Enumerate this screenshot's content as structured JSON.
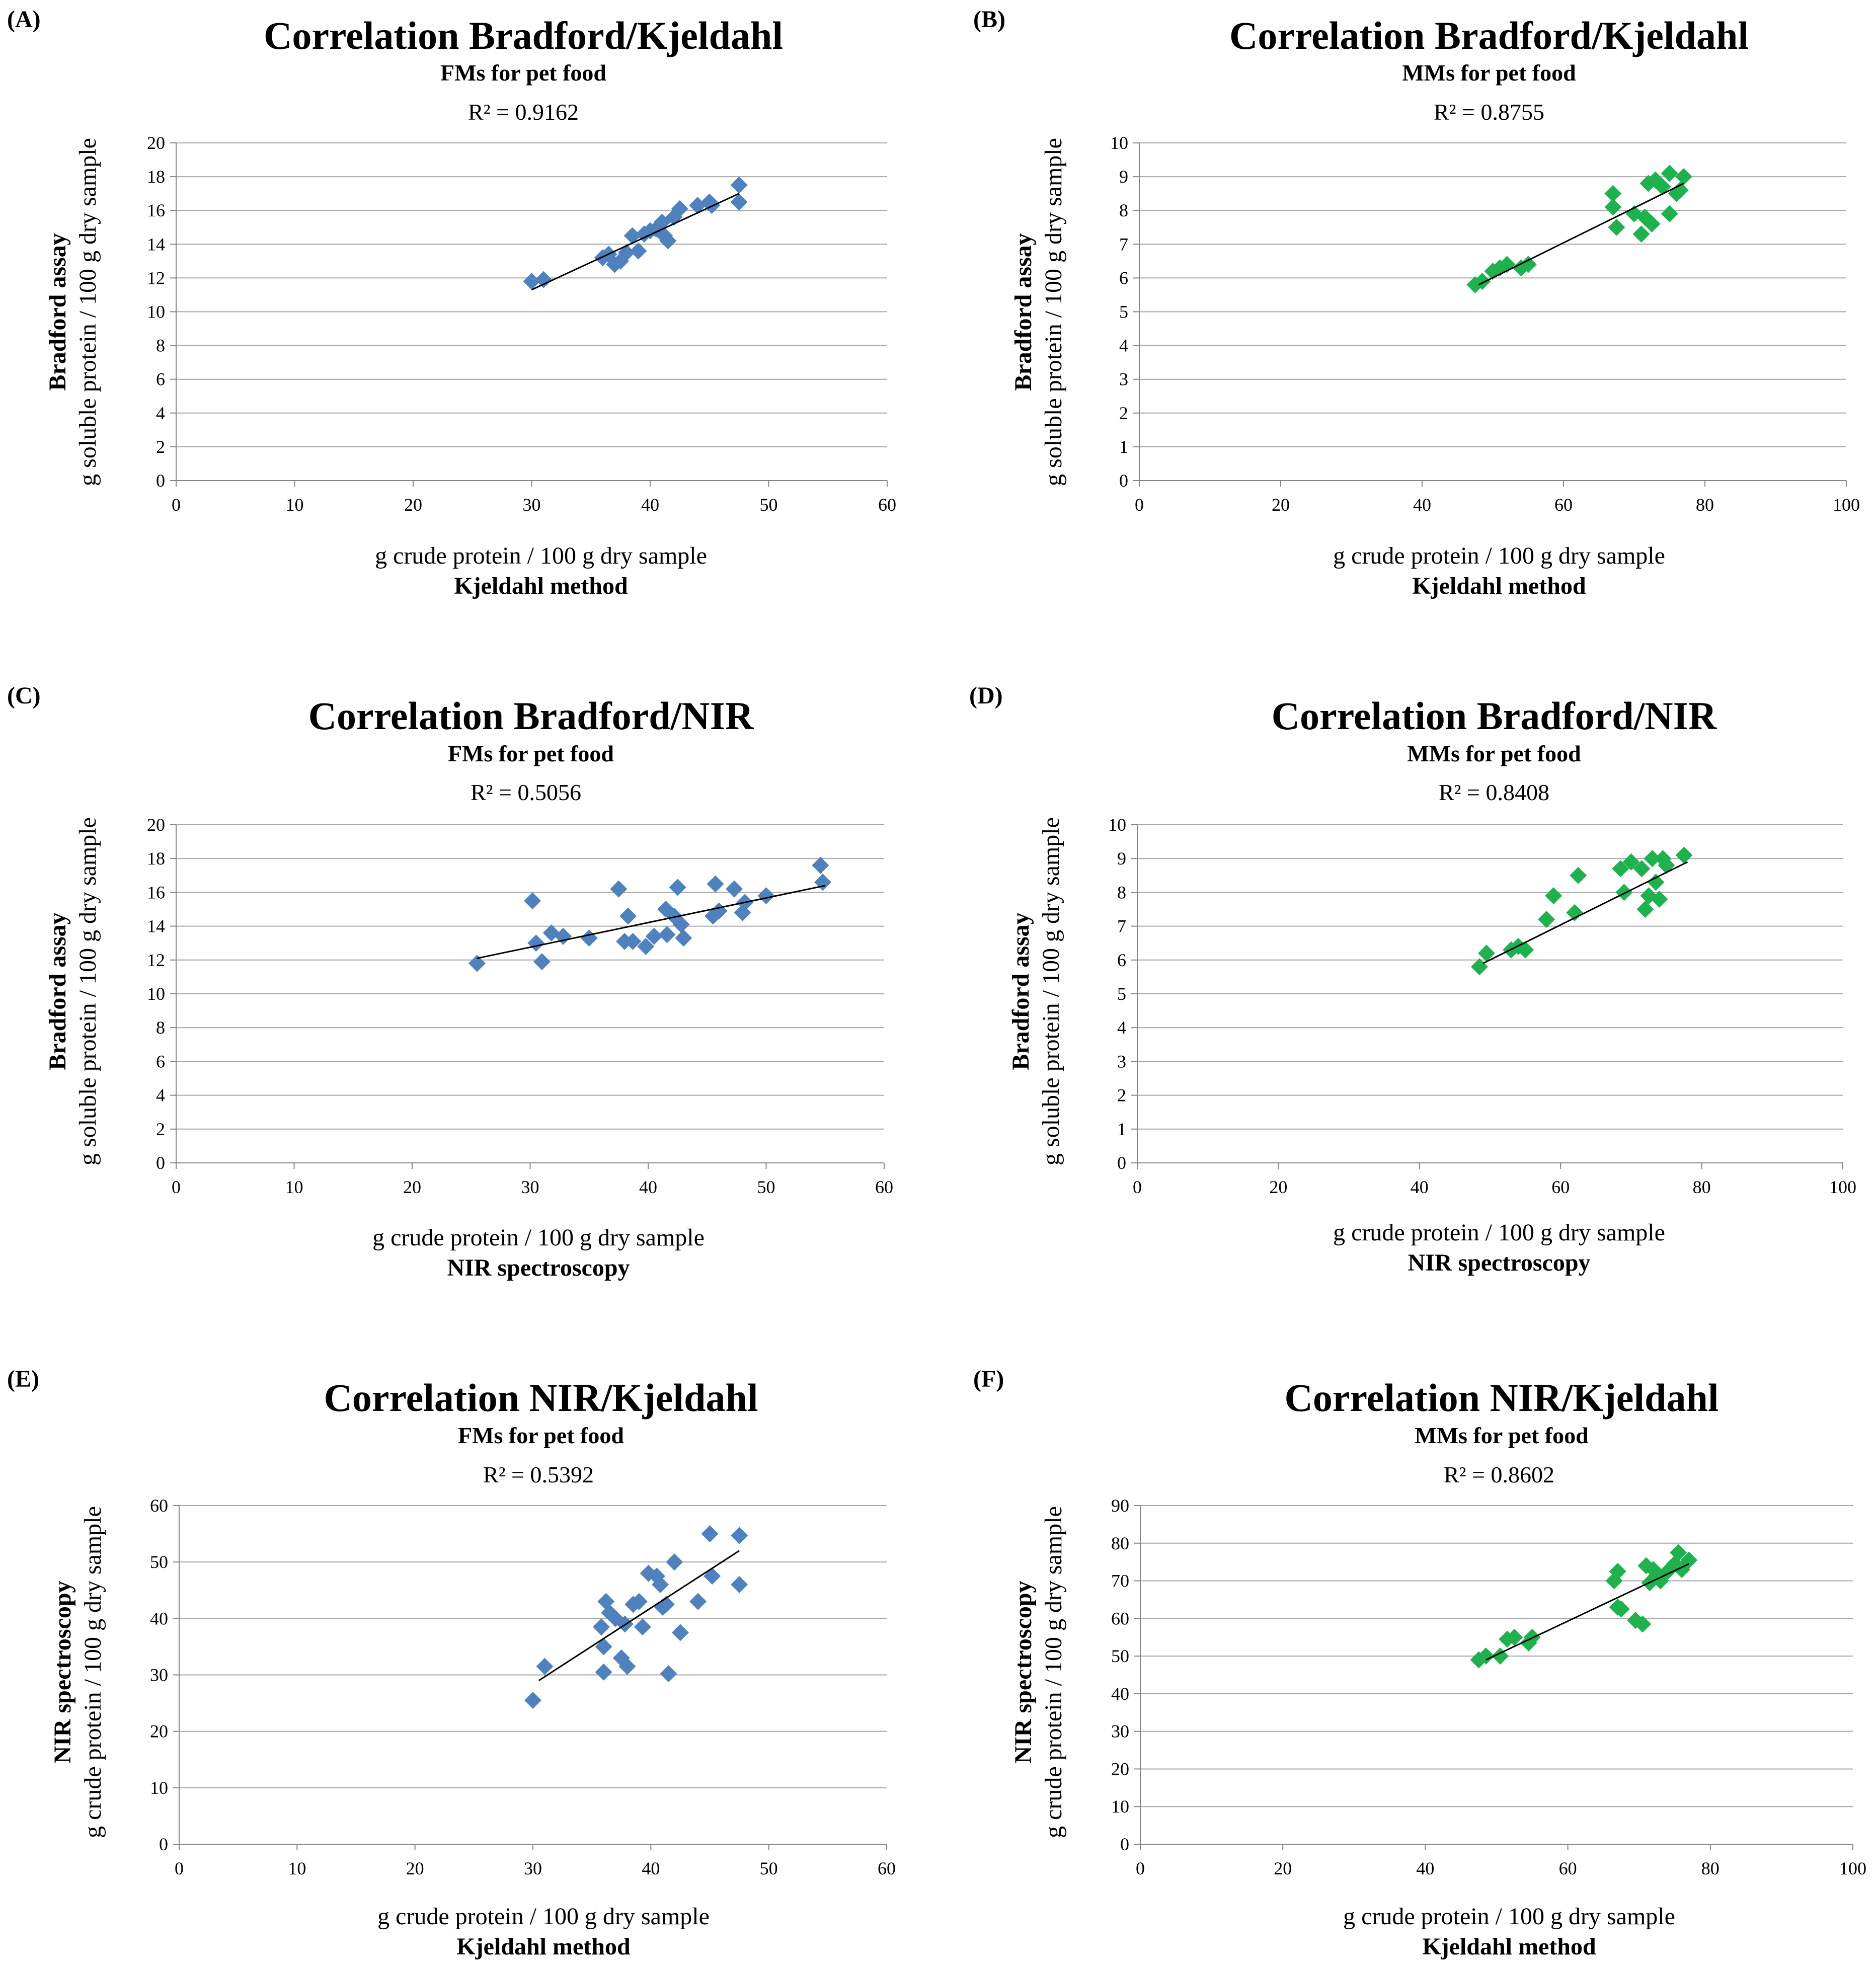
{
  "figure": {
    "colors": {
      "blue": "#4f81bd",
      "green": "#1eb14e",
      "grid": "#a6a6a6",
      "axis": "#868686",
      "trend": "#000000"
    }
  },
  "chart_data": [
    {
      "panel_letter": "(A)",
      "type": "scatter",
      "title": "Correlation Bradford/Kjeldahl",
      "subtitle": "FMs for pet food",
      "r2": "R² = 0.9162",
      "xlabel": "g crude protein / 100 g dry sample",
      "xlabel_bold": "Kjeldahl method",
      "ylabel": "g soluble protein / 100 g dry sample",
      "ylabel_bold": "Bradford assay",
      "xlim": [
        0,
        60
      ],
      "xticks": [
        0,
        10,
        20,
        30,
        40,
        50,
        60
      ],
      "ylim": [
        0,
        20
      ],
      "yticks": [
        0,
        2,
        4,
        6,
        8,
        10,
        12,
        14,
        16,
        18,
        20
      ],
      "color": "blue",
      "trendline": {
        "x": [
          30,
          47.5
        ],
        "y": [
          11.3,
          17.0
        ]
      },
      "points": [
        [
          30,
          11.8
        ],
        [
          31,
          11.9
        ],
        [
          36,
          13.2
        ],
        [
          36.5,
          13.4
        ],
        [
          37,
          12.8
        ],
        [
          37.5,
          13.0
        ],
        [
          38,
          13.5
        ],
        [
          38.5,
          14.5
        ],
        [
          39,
          13.6
        ],
        [
          39.5,
          14.6
        ],
        [
          40,
          14.8
        ],
        [
          40.5,
          14.9
        ],
        [
          41,
          15.3
        ],
        [
          41.2,
          14.5
        ],
        [
          41.5,
          14.2
        ],
        [
          42,
          15.6
        ],
        [
          42.5,
          16.1
        ],
        [
          44,
          16.3
        ],
        [
          45,
          16.5
        ],
        [
          45.2,
          16.3
        ],
        [
          47.5,
          17.5
        ],
        [
          47.5,
          16.5
        ]
      ]
    },
    {
      "panel_letter": "(B)",
      "type": "scatter",
      "title": "Correlation Bradford/Kjeldahl",
      "subtitle": "MMs for pet food",
      "r2": "R² = 0.8755",
      "xlabel": "g crude protein / 100 g dry sample",
      "xlabel_bold": "Kjeldahl method",
      "ylabel": "g soluble protein / 100 g dry sample",
      "ylabel_bold": "Bradford assay",
      "xlim": [
        0,
        100
      ],
      "xticks": [
        0,
        20,
        40,
        60,
        80,
        100
      ],
      "ylim": [
        0,
        10
      ],
      "yticks": [
        0,
        1,
        2,
        3,
        4,
        5,
        6,
        7,
        8,
        9,
        10
      ],
      "color": "green",
      "trendline": {
        "x": [
          48,
          77
        ],
        "y": [
          5.8,
          8.8
        ]
      },
      "points": [
        [
          47.5,
          5.8
        ],
        [
          48.5,
          5.9
        ],
        [
          50,
          6.2
        ],
        [
          51,
          6.3
        ],
        [
          52,
          6.4
        ],
        [
          54,
          6.3
        ],
        [
          55,
          6.4
        ],
        [
          67,
          8.5
        ],
        [
          67,
          8.1
        ],
        [
          67.5,
          7.5
        ],
        [
          70,
          7.9
        ],
        [
          71,
          7.3
        ],
        [
          71.5,
          7.8
        ],
        [
          72,
          8.8
        ],
        [
          72.5,
          7.6
        ],
        [
          73,
          8.9
        ],
        [
          74,
          8.7
        ],
        [
          75,
          7.9
        ],
        [
          75,
          9.1
        ],
        [
          76,
          8.5
        ],
        [
          76.5,
          8.6
        ],
        [
          77,
          9.0
        ]
      ]
    },
    {
      "panel_letter": "(C)",
      "type": "scatter",
      "title": "Correlation Bradford/NIR",
      "subtitle": "FMs for pet food",
      "r2": "R² = 0.5056",
      "xlabel": "g crude protein / 100 g dry sample",
      "xlabel_bold": "NIR spectroscopy",
      "ylabel": "g soluble protein / 100 g dry sample",
      "ylabel_bold": "Bradford assay",
      "xlim": [
        0,
        60
      ],
      "xticks": [
        0,
        10,
        20,
        30,
        40,
        50,
        60
      ],
      "ylim": [
        0,
        20
      ],
      "yticks": [
        0,
        2,
        4,
        6,
        8,
        10,
        12,
        14,
        16,
        18,
        20
      ],
      "color": "blue",
      "trendline": {
        "x": [
          25.5,
          55
        ],
        "y": [
          12.1,
          16.4
        ]
      },
      "points": [
        [
          25.5,
          11.8
        ],
        [
          30.2,
          15.5
        ],
        [
          30.5,
          13.0
        ],
        [
          31.0,
          11.9
        ],
        [
          31.8,
          13.6
        ],
        [
          32.8,
          13.4
        ],
        [
          35.0,
          13.3
        ],
        [
          37.5,
          16.2
        ],
        [
          38.0,
          13.1
        ],
        [
          38.3,
          14.6
        ],
        [
          38.7,
          13.1
        ],
        [
          39.8,
          12.8
        ],
        [
          40.5,
          13.4
        ],
        [
          41.5,
          15.0
        ],
        [
          41.6,
          13.5
        ],
        [
          42.2,
          14.6
        ],
        [
          42.5,
          16.3
        ],
        [
          42.8,
          14.1
        ],
        [
          43.0,
          13.3
        ],
        [
          45.5,
          14.6
        ],
        [
          45.7,
          16.5
        ],
        [
          46.0,
          14.9
        ],
        [
          47.3,
          16.2
        ],
        [
          48.0,
          14.8
        ],
        [
          48.2,
          15.4
        ],
        [
          50.0,
          15.8
        ],
        [
          54.6,
          17.6
        ],
        [
          54.8,
          16.6
        ]
      ]
    },
    {
      "panel_letter": "(D)",
      "type": "scatter",
      "title": "Correlation Bradford/NIR",
      "subtitle": "MMs for pet food",
      "r2": "R² = 0.8408",
      "xlabel": "g crude protein / 100 g dry sample",
      "xlabel_bold": "NIR spectroscopy",
      "ylabel": "g soluble protein / 100 g dry sample",
      "ylabel_bold": "Bradford assay",
      "xlim": [
        0,
        100
      ],
      "xticks": [
        0,
        20,
        40,
        60,
        80,
        100
      ],
      "ylim": [
        0,
        10
      ],
      "yticks": [
        0,
        1,
        2,
        3,
        4,
        5,
        6,
        7,
        8,
        9,
        10
      ],
      "color": "green",
      "trendline": {
        "x": [
          49,
          78
        ],
        "y": [
          5.9,
          8.9
        ]
      },
      "points": [
        [
          48.5,
          5.8
        ],
        [
          49.5,
          6.2
        ],
        [
          53,
          6.3
        ],
        [
          54,
          6.4
        ],
        [
          55,
          6.3
        ],
        [
          58,
          7.2
        ],
        [
          59,
          7.9
        ],
        [
          62,
          7.4
        ],
        [
          62.5,
          8.5
        ],
        [
          68.5,
          8.7
        ],
        [
          69,
          8.0
        ],
        [
          70,
          8.9
        ],
        [
          71.5,
          8.7
        ],
        [
          72,
          7.5
        ],
        [
          72.5,
          7.9
        ],
        [
          73,
          9.0
        ],
        [
          73.5,
          8.3
        ],
        [
          74,
          7.8
        ],
        [
          74.5,
          9.0
        ],
        [
          75,
          8.8
        ],
        [
          77.5,
          9.1
        ]
      ]
    },
    {
      "panel_letter": "(E)",
      "type": "scatter",
      "title": "Correlation NIR/Kjeldahl",
      "subtitle": "FMs for pet food",
      "r2": "R² = 0.5392",
      "xlabel": "g crude protein / 100 g dry sample",
      "xlabel_bold": "Kjeldahl method",
      "ylabel": "g crude protein / 100 g dry sample",
      "ylabel_bold": "NIR spectroscopy",
      "xlim": [
        0,
        60
      ],
      "xticks": [
        0,
        10,
        20,
        30,
        40,
        50,
        60
      ],
      "ylim": [
        0,
        60
      ],
      "yticks": [
        0,
        10,
        20,
        30,
        40,
        50,
        60
      ],
      "color": "blue",
      "trendline": {
        "x": [
          30.5,
          47.5
        ],
        "y": [
          29.0,
          52.0
        ]
      },
      "points": [
        [
          30.0,
          25.5
        ],
        [
          31.0,
          31.5
        ],
        [
          35.8,
          38.5
        ],
        [
          36.0,
          35.0
        ],
        [
          36.0,
          30.5
        ],
        [
          36.2,
          43.0
        ],
        [
          36.5,
          41.0
        ],
        [
          37.0,
          40.0
        ],
        [
          37.5,
          33.0
        ],
        [
          37.8,
          39.0
        ],
        [
          38.0,
          31.5
        ],
        [
          38.5,
          42.5
        ],
        [
          39.0,
          43.0
        ],
        [
          39.3,
          38.5
        ],
        [
          39.8,
          48.0
        ],
        [
          40.5,
          47.5
        ],
        [
          40.8,
          46.0
        ],
        [
          41.0,
          42.0
        ],
        [
          41.3,
          42.5
        ],
        [
          41.5,
          30.2
        ],
        [
          42.0,
          50.0
        ],
        [
          42.5,
          37.5
        ],
        [
          44.0,
          43.0
        ],
        [
          45.0,
          55.0
        ],
        [
          45.2,
          47.5
        ],
        [
          47.5,
          54.7
        ],
        [
          47.5,
          46.0
        ]
      ]
    },
    {
      "panel_letter": "(F)",
      "type": "scatter",
      "title": "Correlation NIR/Kjeldahl",
      "subtitle": "MMs for pet food",
      "r2": "R² = 0.8602",
      "xlabel": "g crude protein / 100 g dry sample",
      "xlabel_bold": "Kjeldahl method",
      "ylabel": "g crude protein / 100 g dry sample",
      "ylabel_bold": "NIR spectroscopy",
      "xlim": [
        0,
        100
      ],
      "xticks": [
        0,
        20,
        40,
        60,
        80,
        100
      ],
      "ylim": [
        0,
        90
      ],
      "yticks": [
        0,
        10,
        20,
        30,
        40,
        50,
        60,
        70,
        80,
        90
      ],
      "color": "green",
      "trendline": {
        "x": [
          48.5,
          77
        ],
        "y": [
          49.0,
          74.5
        ]
      },
      "points": [
        [
          47.5,
          49.0
        ],
        [
          48.5,
          50.0
        ],
        [
          50.5,
          50.0
        ],
        [
          51.5,
          54.5
        ],
        [
          52.5,
          55.0
        ],
        [
          54.5,
          53.5
        ],
        [
          55.0,
          55.0
        ],
        [
          66.5,
          70.0
        ],
        [
          67.0,
          72.5
        ],
        [
          67.0,
          63.0
        ],
        [
          67.5,
          62.5
        ],
        [
          69.5,
          59.5
        ],
        [
          70.5,
          58.5
        ],
        [
          71.0,
          74.0
        ],
        [
          71.5,
          69.5
        ],
        [
          72.0,
          73.0
        ],
        [
          72.5,
          71.5
        ],
        [
          73.0,
          70.0
        ],
        [
          74.0,
          72.5
        ],
        [
          75.0,
          74.5
        ],
        [
          75.5,
          77.5
        ],
        [
          76.0,
          73.0
        ],
        [
          77.0,
          75.5
        ]
      ]
    }
  ]
}
